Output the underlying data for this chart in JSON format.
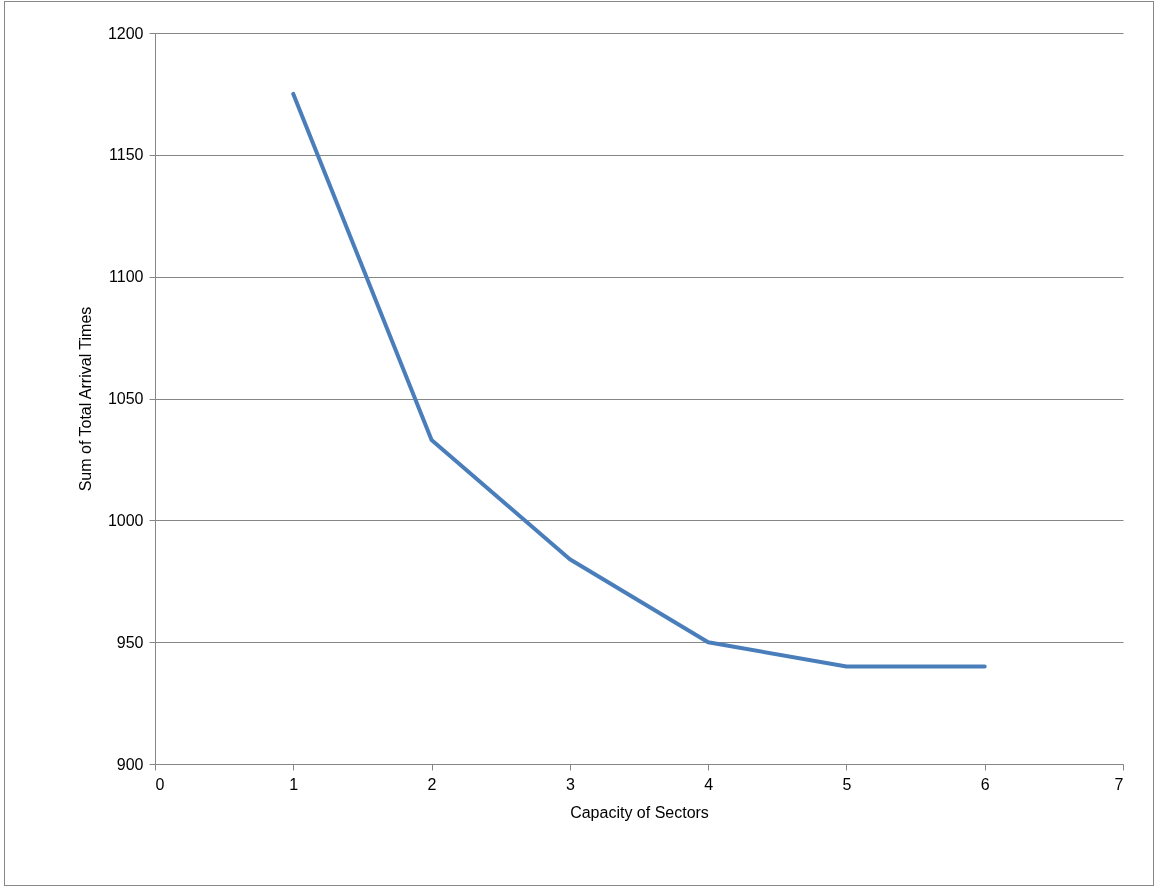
{
  "chart_data": {
    "type": "line",
    "xlabel": "Capacity of Sectors",
    "ylabel": "Sum of Total Arrival Times",
    "x": [
      1,
      2,
      3,
      4,
      5,
      6
    ],
    "series": [
      {
        "color": "#4a7ebb",
        "values": [
          1175,
          1033,
          984,
          950,
          940,
          940
        ]
      }
    ],
    "xlim": [
      0,
      7
    ],
    "xticks": [
      0,
      1,
      2,
      3,
      4,
      5,
      6,
      7
    ],
    "ylim": [
      900,
      1200
    ],
    "yticks": [
      900,
      950,
      1000,
      1050,
      1100,
      1150,
      1200
    ],
    "grid": "y",
    "marker": "none",
    "line_style": "solid"
  }
}
